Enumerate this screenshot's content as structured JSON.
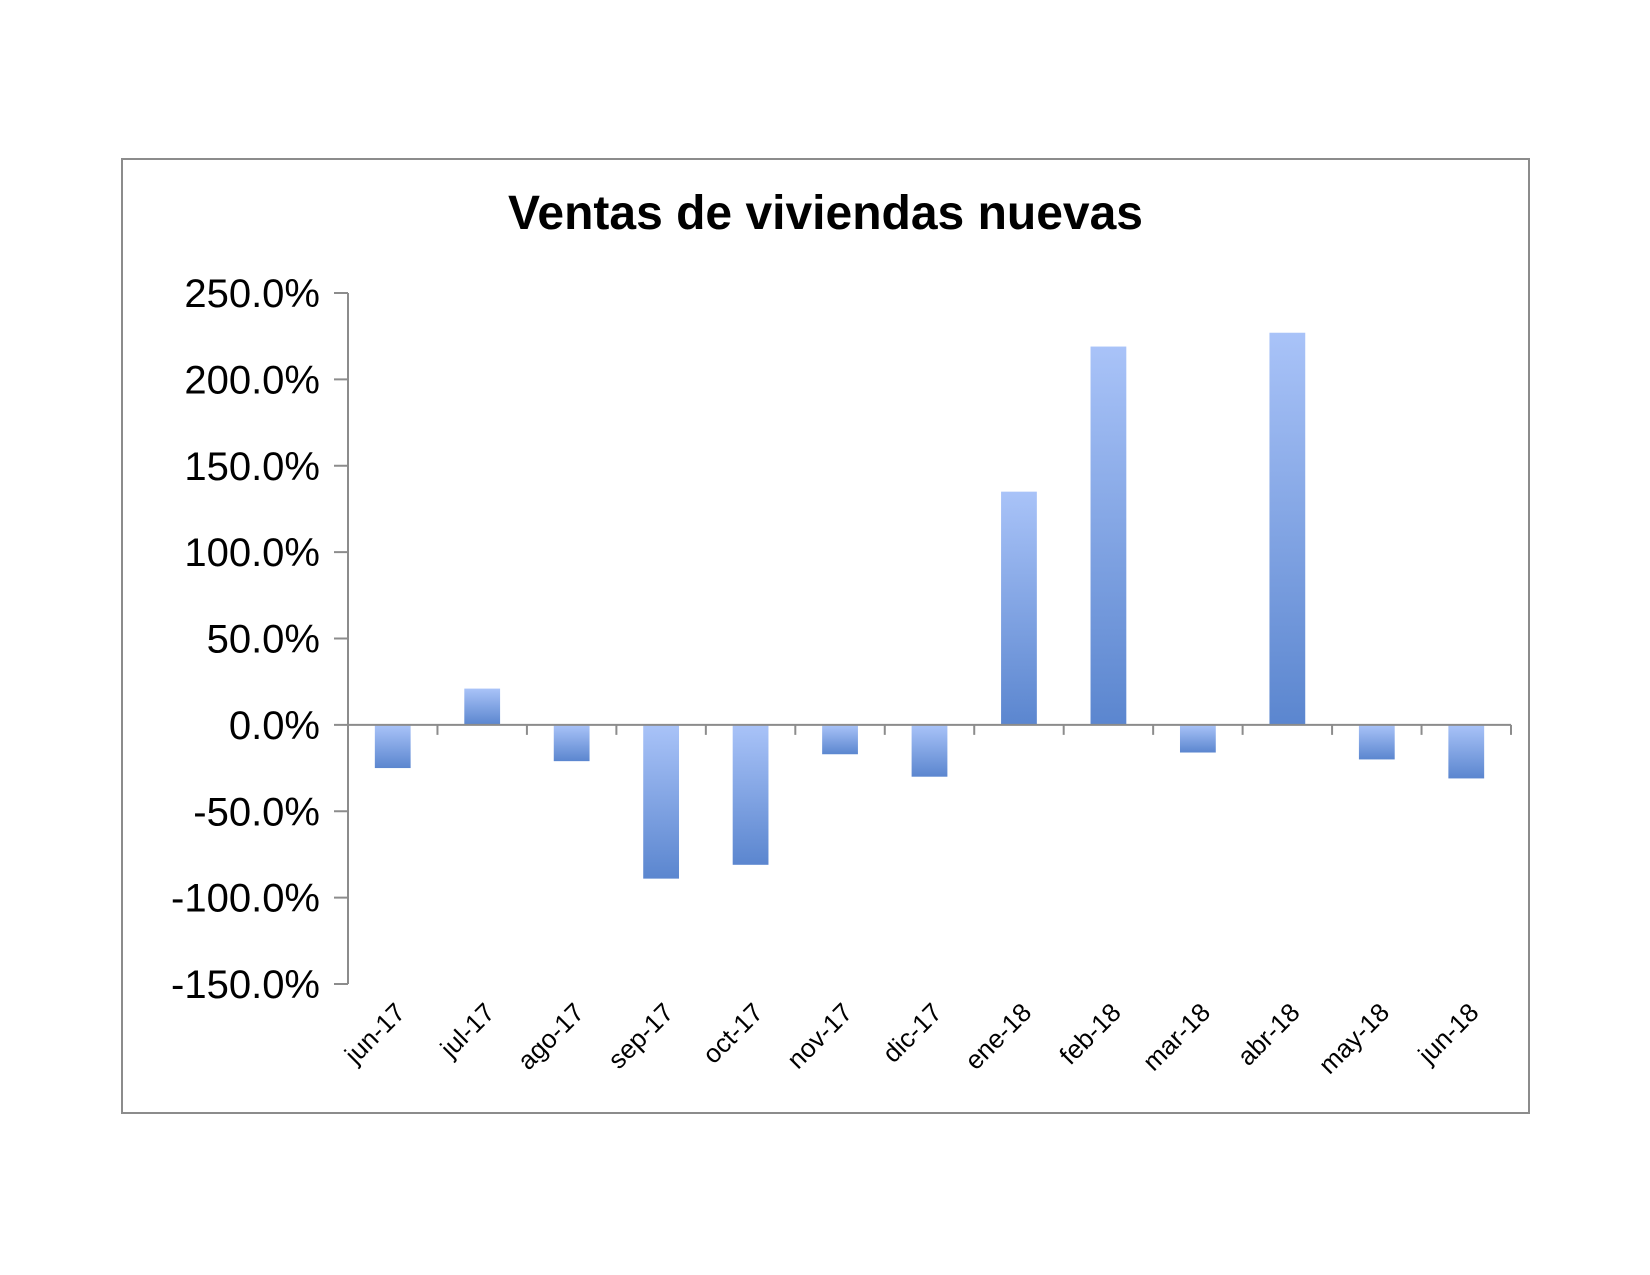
{
  "chart_data": {
    "type": "bar",
    "title": "Ventas de viviendas nuevas",
    "xlabel": "",
    "ylabel": "",
    "categories": [
      "jun-17",
      "jul-17",
      "ago-17",
      "sep-17",
      "oct-17",
      "nov-17",
      "dic-17",
      "ene-18",
      "feb-18",
      "mar-18",
      "abr-18",
      "may-18",
      "jun-18"
    ],
    "values": [
      -25,
      21,
      -21,
      -89,
      -81,
      -17,
      -30,
      135,
      219,
      -16,
      227,
      -20,
      -31
    ],
    "ylim": [
      -150,
      250
    ],
    "yticks": [
      250,
      200,
      150,
      100,
      50,
      0,
      -50,
      -100,
      -150
    ],
    "ytick_labels": [
      "250.0%",
      "200.0%",
      "150.0%",
      "100.0%",
      "50.0%",
      "0.0%",
      "-50.0%",
      "-100.0%",
      "-150.0%"
    ],
    "grid": false,
    "legend": "none",
    "colors": {
      "bar_top": "#a9c3f8",
      "bar_bottom": "#5b86cf",
      "axis": "#8c8c8c",
      "frame": "#8c8c8c"
    }
  }
}
